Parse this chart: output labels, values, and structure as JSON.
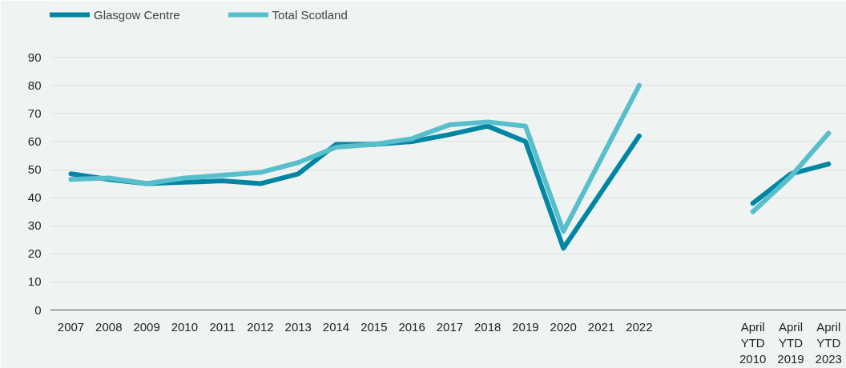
{
  "chart_data": {
    "type": "line",
    "categories": [
      "2007",
      "2008",
      "2009",
      "2010",
      "2011",
      "2012",
      "2013",
      "2014",
      "2015",
      "2016",
      "2017",
      "2018",
      "2019",
      "2020",
      "2021",
      "2022",
      null,
      null,
      "April\nYTD\n2010",
      "April\nYTD\n2019",
      "April\nYTD\n2023"
    ],
    "series": [
      {
        "name": "Glasgow Centre",
        "color": "#0086a3",
        "values": [
          48.5,
          46.5,
          45,
          45.5,
          46,
          45,
          48.5,
          59,
          59,
          60,
          62.5,
          65.5,
          60,
          22,
          null,
          62,
          null,
          null,
          38,
          48.5,
          52
        ]
      },
      {
        "name": "Total Scotland",
        "color": "#57bfcc",
        "values": [
          46.5,
          47,
          45,
          47,
          48,
          49,
          52.5,
          58,
          59,
          61,
          66,
          67,
          65.5,
          28,
          null,
          80,
          null,
          null,
          35,
          47.5,
          63
        ]
      }
    ],
    "ylim": [
      0,
      108
    ],
    "yticks": [
      0,
      10,
      20,
      30,
      40,
      50,
      60,
      70,
      80,
      90
    ],
    "grid": "y",
    "legend": "top",
    "marker": "none",
    "line_style": "solid"
  }
}
